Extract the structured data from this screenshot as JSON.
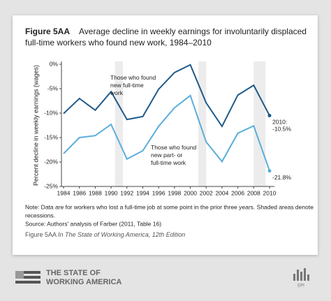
{
  "header": {
    "figure_label": "Figure 5AA",
    "title_lines": [
      "Average decline in weekly earnings for involuntarily displaced",
      "full-time workers who found new work, 1984–2010"
    ]
  },
  "chart_data": {
    "type": "line",
    "y_label": "Percent decline in weekly earnings (wages)",
    "x": [
      1984,
      1986,
      1988,
      1990,
      1992,
      1994,
      1996,
      1998,
      2000,
      2002,
      2004,
      2006,
      2008,
      2010
    ],
    "xlim": [
      1984,
      2010
    ],
    "xticks": [
      1984,
      1986,
      1988,
      1990,
      1992,
      1994,
      1996,
      1998,
      2000,
      2002,
      2004,
      2006,
      2008,
      2010
    ],
    "ylim": [
      -25,
      0
    ],
    "yticks": [
      {
        "value": 0,
        "label": "0%"
      },
      {
        "value": -5,
        "label": "-5%"
      },
      {
        "value": -10,
        "label": "-10%"
      },
      {
        "value": -15,
        "label": "-15%"
      },
      {
        "value": -20,
        "label": "-20%"
      },
      {
        "value": -25,
        "label": "-25%"
      }
    ],
    "shaded": [
      [
        1990.5,
        1991.5
      ],
      [
        2001,
        2002
      ],
      [
        2008,
        2009.5
      ]
    ],
    "shade_color": "#ececec",
    "series": [
      {
        "name": "Those who found new full-time work",
        "color": "#1e5a8a",
        "values": [
          -10.1,
          -7,
          -9.4,
          -5.6,
          -11.3,
          -10.7,
          -5.1,
          -1.7,
          -0.1,
          -7.9,
          -12.7,
          -6.3,
          -4.3,
          -10.5
        ],
        "value_labels": [
          null,
          null,
          null,
          null,
          null,
          null,
          null,
          null,
          null,
          null,
          null,
          null,
          null,
          "2010: -10.5%"
        ]
      },
      {
        "name": "Those who found new part- or full-time work",
        "color": "#5aaedc",
        "values": [
          -18.3,
          -15,
          -14.6,
          -12.3,
          -19.4,
          -17.7,
          -12.7,
          -8.9,
          -6.4,
          -15.9,
          -19.9,
          -14.1,
          -12.6,
          -21.8
        ],
        "value_labels": [
          null,
          null,
          null,
          null,
          null,
          null,
          null,
          null,
          null,
          null,
          null,
          null,
          null,
          "-21.8%"
        ]
      }
    ]
  },
  "notes": [
    "Note: Data are for workers who lost a full-time job at some point in the prior three years. Shaded areas denote",
    "recessions.",
    "Source: Authors' analysis of Farber (2011, Table 16)"
  ],
  "caption": {
    "label": "Figure 5AA",
    "source": "In The State of Working America, 12th Edition"
  },
  "footer": {
    "brand_lines": [
      "THE STATE OF",
      "WORKING AMERICA"
    ],
    "epi": "EPI"
  }
}
